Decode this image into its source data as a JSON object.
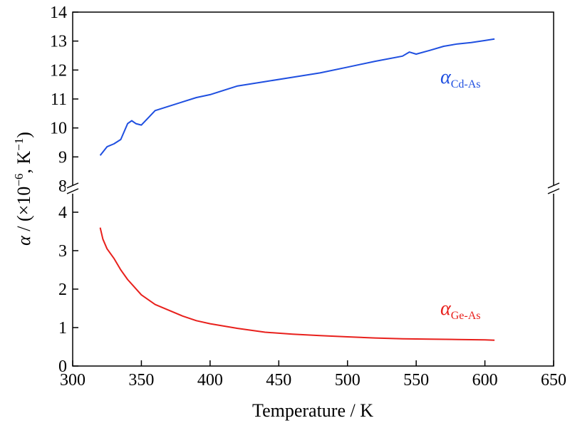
{
  "chart_data": {
    "type": "line",
    "xlabel": "Temperature / K",
    "ylabel_parts": [
      "α",
      " / (×10",
      "−6",
      ", K",
      "−1",
      ")"
    ],
    "xlim": [
      300,
      650
    ],
    "x_ticks": [
      300,
      350,
      400,
      450,
      500,
      550,
      600,
      650
    ],
    "broken_y_axis": true,
    "upper_panel": {
      "ylim": [
        8,
        14
      ],
      "y_ticks": [
        8,
        9,
        10,
        11,
        12,
        13,
        14
      ]
    },
    "lower_panel": {
      "ylim": [
        0,
        4.5
      ],
      "y_ticks": [
        0,
        1,
        2,
        3,
        4
      ]
    },
    "grid": false,
    "series": [
      {
        "name": "αCd-As",
        "symbol": "α",
        "subscript": "Cd-As",
        "panel": "upper",
        "color": "#1f4fe0",
        "x": [
          320,
          325,
          330,
          335,
          340,
          343,
          346,
          350,
          355,
          360,
          370,
          380,
          390,
          400,
          420,
          440,
          460,
          480,
          500,
          520,
          540,
          545,
          550,
          560,
          570,
          580,
          590,
          600,
          607
        ],
        "y": [
          9.05,
          9.35,
          9.45,
          9.6,
          10.15,
          10.25,
          10.15,
          10.1,
          10.35,
          10.6,
          10.75,
          10.9,
          11.05,
          11.15,
          11.45,
          11.6,
          11.75,
          11.9,
          12.1,
          12.3,
          12.48,
          12.62,
          12.55,
          12.68,
          12.82,
          12.9,
          12.95,
          13.02,
          13.07
        ]
      },
      {
        "name": "αGe-As",
        "symbol": "α",
        "subscript": "Ge-As",
        "panel": "lower",
        "color": "#e8201c",
        "x": [
          320,
          322,
          325,
          330,
          335,
          340,
          345,
          350,
          360,
          370,
          380,
          390,
          400,
          420,
          440,
          460,
          480,
          500,
          520,
          540,
          560,
          580,
          600,
          607
        ],
        "y": [
          3.6,
          3.3,
          3.05,
          2.8,
          2.5,
          2.25,
          2.05,
          1.85,
          1.6,
          1.45,
          1.3,
          1.18,
          1.1,
          0.98,
          0.88,
          0.83,
          0.79,
          0.76,
          0.73,
          0.71,
          0.7,
          0.69,
          0.68,
          0.67
        ]
      }
    ]
  }
}
